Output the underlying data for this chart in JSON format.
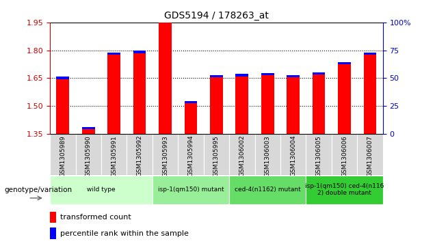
{
  "title": "GDS5194 / 178263_at",
  "samples": [
    "GSM1305989",
    "GSM1305990",
    "GSM1305991",
    "GSM1305992",
    "GSM1305993",
    "GSM1305994",
    "GSM1305995",
    "GSM1306002",
    "GSM1306003",
    "GSM1306004",
    "GSM1306005",
    "GSM1306006",
    "GSM1306007"
  ],
  "red_values": [
    1.645,
    1.375,
    1.775,
    1.785,
    1.95,
    1.515,
    1.655,
    1.66,
    1.665,
    1.655,
    1.67,
    1.725,
    1.775
  ],
  "blue_values": [
    0.012,
    0.01,
    0.013,
    0.013,
    0.015,
    0.012,
    0.012,
    0.012,
    0.013,
    0.012,
    0.012,
    0.012,
    0.012
  ],
  "y_min": 1.35,
  "y_max": 1.95,
  "y_ticks_left": [
    1.35,
    1.5,
    1.65,
    1.8,
    1.95
  ],
  "y_ticks_right": [
    0,
    25,
    50,
    75,
    100
  ],
  "groups": [
    {
      "label": "wild type",
      "start": 0,
      "end": 3,
      "color": "#ccffcc"
    },
    {
      "label": "isp-1(qm150) mutant",
      "start": 4,
      "end": 6,
      "color": "#99ee99"
    },
    {
      "label": "ced-4(n1162) mutant",
      "start": 7,
      "end": 9,
      "color": "#66dd66"
    },
    {
      "label": "isp-1(qm150) ced-4(n116\n2) double mutant",
      "start": 10,
      "end": 12,
      "color": "#33cc33"
    }
  ],
  "legend_label_red": "transformed count",
  "legend_label_blue": "percentile rank within the sample",
  "genotype_label": "genotype/variation",
  "bar_width": 0.5,
  "axis_color_left": "#cc0000",
  "axis_color_right": "#0000cc",
  "sample_bg_color": "#d8d8d8",
  "plot_bg_color": "#ffffff",
  "grid_color": "#000000"
}
